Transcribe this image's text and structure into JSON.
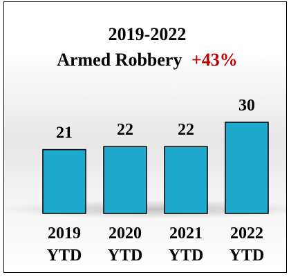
{
  "chart_data": {
    "type": "bar",
    "title_line1": "2019-2022",
    "title_line2_prefix": "Armed Robbery",
    "title_line2_highlight": "+43%",
    "categories": [
      [
        "2019",
        "YTD"
      ],
      [
        "2020",
        "YTD"
      ],
      [
        "2021",
        "YTD"
      ],
      [
        "2022",
        "YTD"
      ]
    ],
    "values": [
      21,
      22,
      22,
      30
    ],
    "value_labels": [
      "21",
      "22",
      "22",
      "30"
    ],
    "ylim": [
      0,
      30
    ],
    "grid": false,
    "legend": "none",
    "colors": {
      "bar_fill": "#1fa9cc",
      "bar_stroke": "#000000",
      "title": "#000000",
      "highlight": "#c00000"
    }
  }
}
